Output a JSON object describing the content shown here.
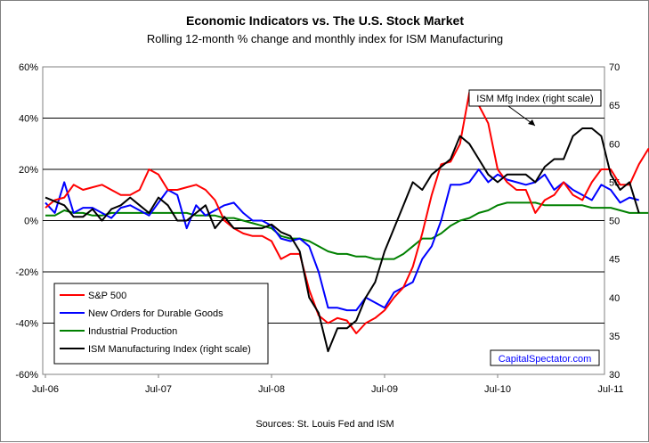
{
  "chart_data": {
    "type": "line",
    "title": "Economic Indicators vs. The U.S. Stock Market",
    "subtitle": "Rolling 12-month % change and monthly index for ISM Manufacturing",
    "source": "Sources: St. Louis Fed and ISM",
    "watermark": "CapitalSpectator.com",
    "callout": "ISM Mfg Index (right scale)",
    "x_ticks": [
      "Jul-06",
      "Jul-07",
      "Jul-08",
      "Jul-09",
      "Jul-10",
      "Jul-11"
    ],
    "y_left": {
      "ticks": [
        "60%",
        "40%",
        "20%",
        "0%",
        "-20%",
        "-40%",
        "-60%"
      ],
      "ylim": [
        -60,
        60
      ]
    },
    "y_right": {
      "ticks": [
        "70",
        "65",
        "60",
        "55",
        "50",
        "45",
        "40",
        "35",
        "30"
      ],
      "ylim": [
        30,
        70
      ]
    },
    "grid": true,
    "legend_position": "bottom-left",
    "x_start": "2006-07",
    "series": [
      {
        "name": "S&P 500",
        "axis": "left",
        "color": "#ff0000",
        "values": [
          5,
          8,
          9,
          14,
          12,
          13,
          14,
          12,
          10,
          10,
          12,
          20,
          18,
          12,
          12,
          13,
          14,
          12,
          8,
          0,
          -3,
          -5,
          -6,
          -6,
          -8,
          -15,
          -13,
          -13,
          -27,
          -37,
          -40,
          -38,
          -39,
          -44,
          -40,
          -38,
          -35,
          -30,
          -26,
          -18,
          -5,
          10,
          22,
          23,
          30,
          50,
          45,
          38,
          20,
          15,
          12,
          12,
          3,
          8,
          10,
          15,
          10,
          8,
          15,
          20,
          20,
          14,
          14,
          22,
          28,
          17
        ]
      },
      {
        "name": "New Orders for Durable Goods",
        "axis": "left",
        "color": "#0000ff",
        "values": [
          7,
          3,
          15,
          3,
          5,
          5,
          3,
          1,
          5,
          6,
          4,
          2,
          7,
          12,
          10,
          -3,
          6,
          2,
          4,
          6,
          7,
          3,
          0,
          0,
          -2,
          -7,
          -8,
          -7,
          -10,
          -20,
          -34,
          -34,
          -35,
          -35,
          -30,
          -32,
          -34,
          -28,
          -26,
          -24,
          -15,
          -10,
          0,
          14,
          14,
          15,
          20,
          15,
          18,
          16,
          15,
          14,
          15,
          18,
          12,
          15,
          12,
          10,
          8,
          14,
          12,
          7,
          9,
          8
        ]
      },
      {
        "name": "Industrial Production",
        "axis": "left",
        "color": "#008000",
        "values": [
          2,
          2,
          4,
          3,
          3,
          2,
          2,
          3,
          3,
          3,
          3,
          3,
          3,
          3,
          3,
          3,
          2,
          2,
          2,
          1,
          1,
          0,
          -1,
          -2,
          -3,
          -6,
          -7,
          -7,
          -8,
          -10,
          -12,
          -13,
          -13,
          -14,
          -14,
          -15,
          -15,
          -15,
          -13,
          -10,
          -7,
          -7,
          -5,
          -2,
          0,
          1,
          3,
          4,
          6,
          7,
          7,
          7,
          7,
          6,
          6,
          6,
          6,
          6,
          5,
          5,
          5,
          4,
          3,
          3,
          3
        ]
      },
      {
        "name": "ISM Manufacturing Index (right scale)",
        "axis": "right",
        "color": "#000000",
        "values": [
          53,
          52.5,
          52,
          50.5,
          50.5,
          51.5,
          50,
          51.5,
          52,
          53,
          52,
          51,
          53,
          52,
          50,
          50,
          51,
          52,
          49,
          50.5,
          49,
          49,
          49,
          49,
          49.5,
          48.5,
          48,
          46,
          40,
          38,
          33,
          36,
          36,
          37,
          40,
          42,
          46,
          49,
          52,
          55,
          54,
          56,
          57,
          58,
          61,
          60,
          58,
          56,
          55,
          56,
          56,
          56,
          55,
          57,
          58,
          58,
          61,
          62,
          62,
          61,
          56,
          54,
          55,
          51
        ]
      }
    ]
  }
}
